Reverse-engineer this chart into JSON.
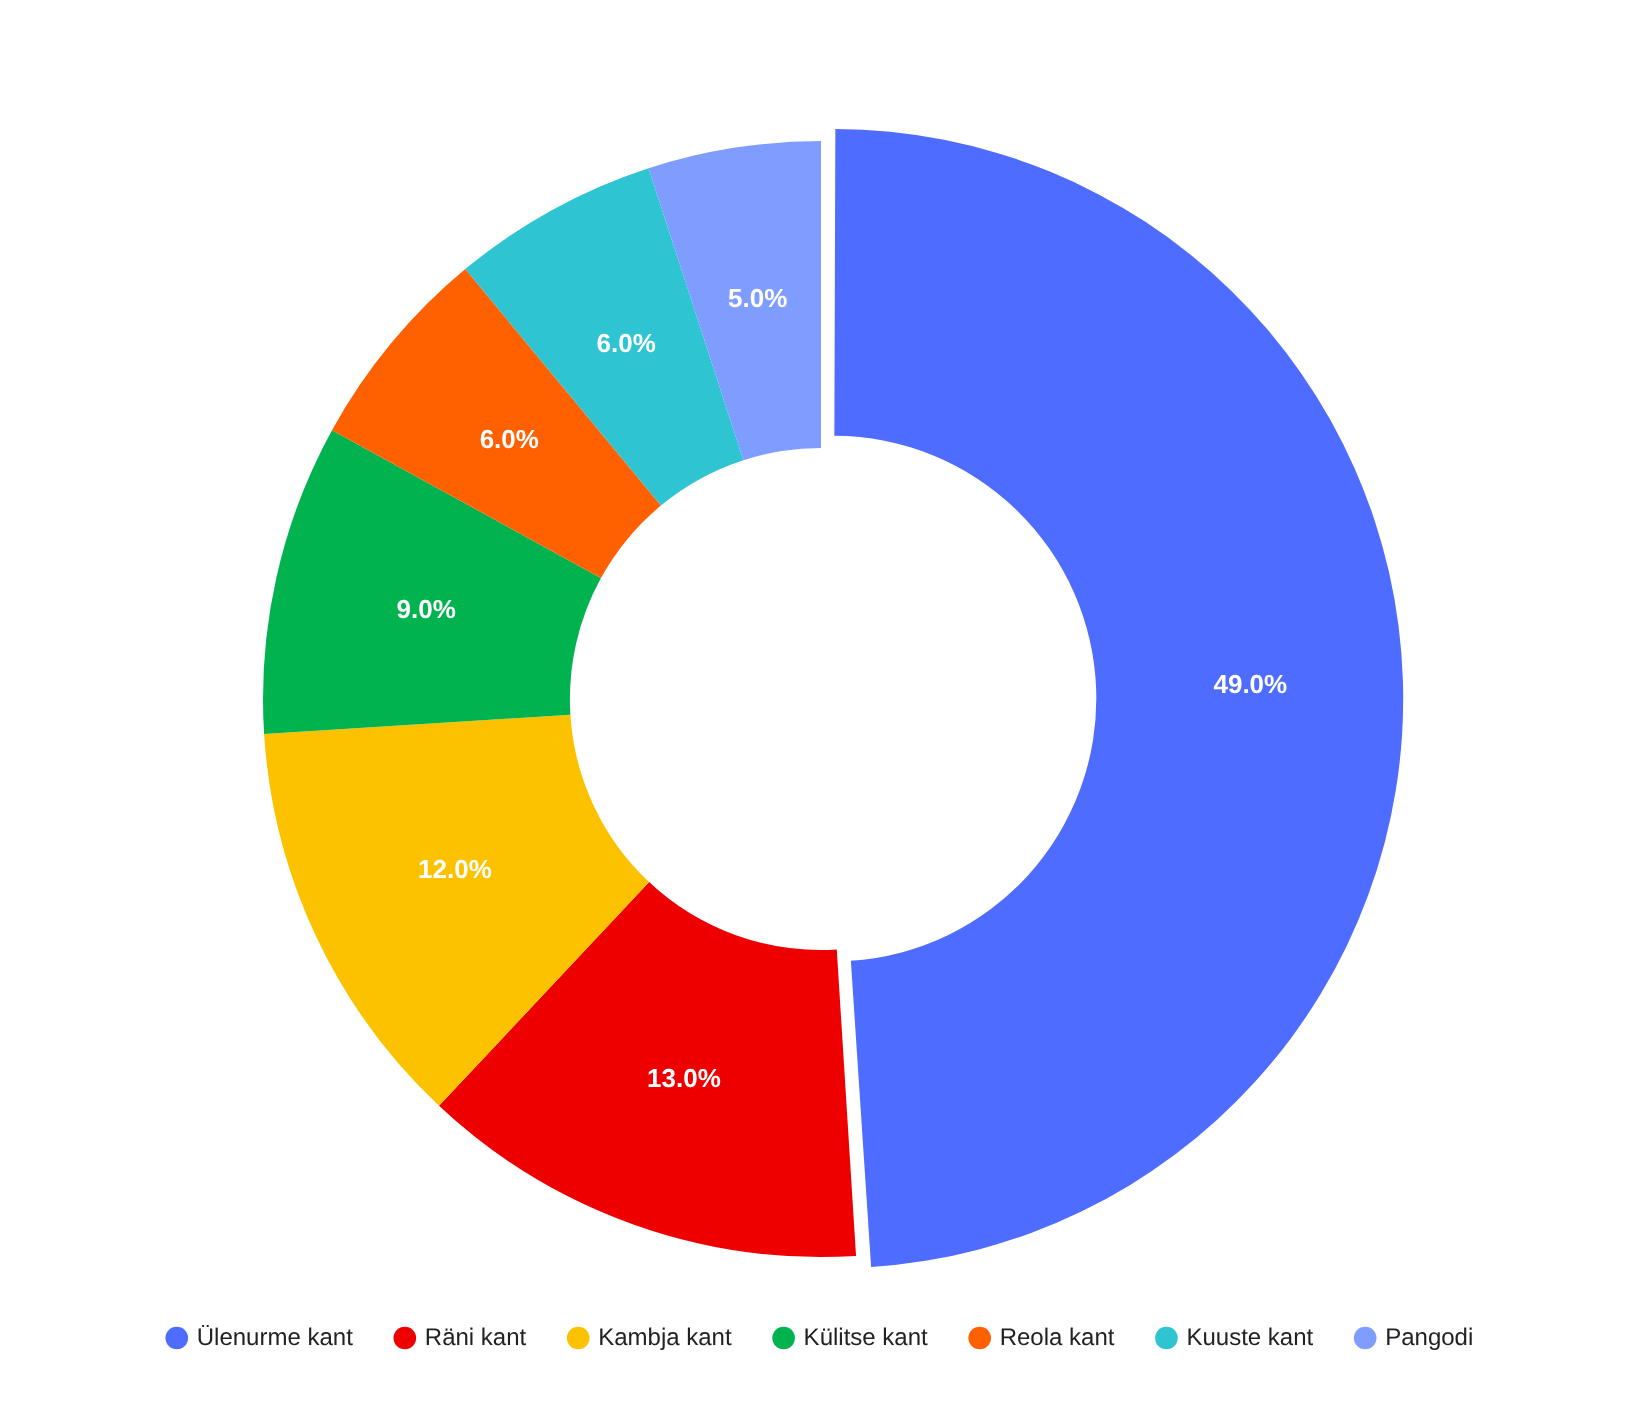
{
  "chart_data": {
    "type": "donut",
    "legend": "bottom",
    "categories": [
      "Ülenurme kant",
      "Räni kant",
      "Kambja kant",
      "Külitse kant",
      "Reola kant",
      "Kuuste kant",
      "Pangodi"
    ],
    "values": [
      49,
      13,
      12,
      9,
      6,
      6,
      5
    ],
    "value_labels": [
      "49.0%",
      "13.0%",
      "12.0%",
      "9.0%",
      "6.0%",
      "6.0%",
      "5.0%"
    ],
    "colors": [
      "#4e6cff",
      "#ee0000",
      "#fcc200",
      "#00b34f",
      "#ff6000",
      "#2ec4d2",
      "#7f9cff"
    ]
  }
}
